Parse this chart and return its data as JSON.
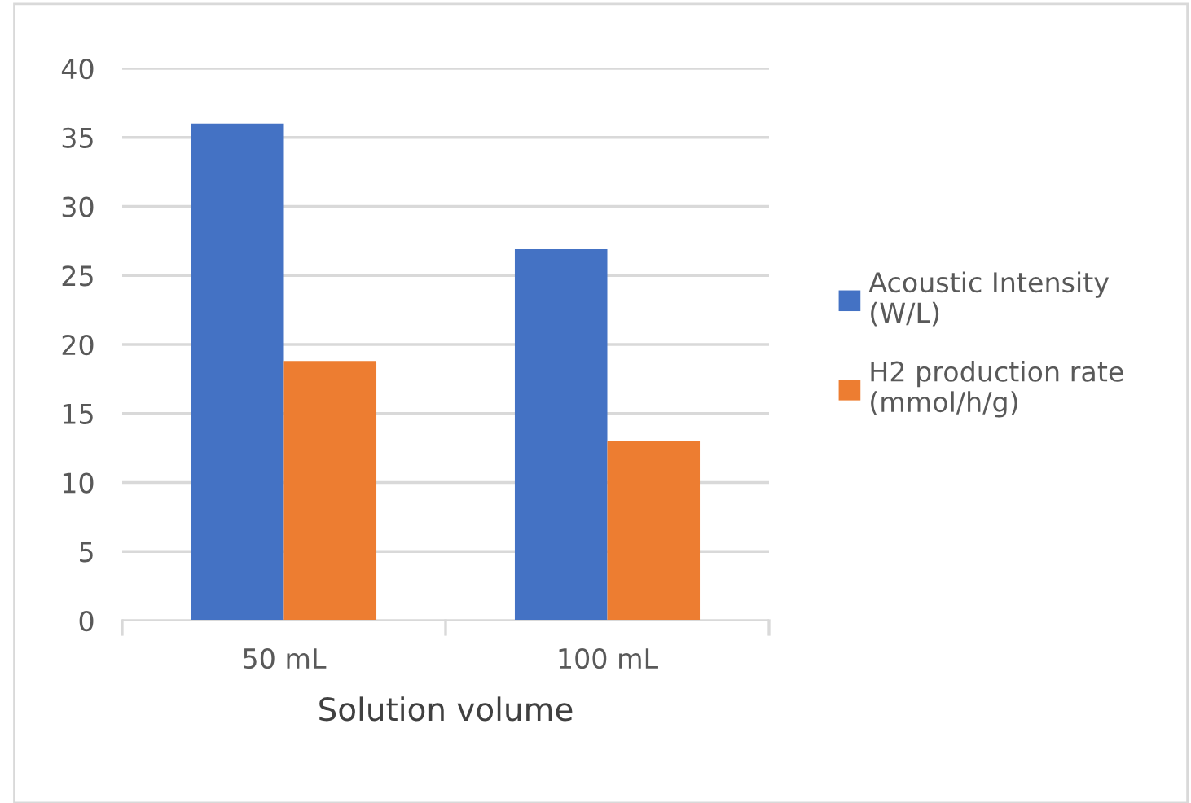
{
  "chart_data": {
    "type": "bar",
    "xlabel": "Solution volume",
    "categories": [
      "50 mL",
      "100 mL"
    ],
    "series": [
      {
        "name": "Acoustic Intensity\n(W/L)",
        "color": "#4472c4",
        "values": [
          36,
          26.9
        ]
      },
      {
        "name": "H2 production rate\n(mmol/h/g)",
        "color": "#ed7d31",
        "values": [
          18.8,
          13
        ]
      }
    ],
    "ylim": [
      0,
      40
    ],
    "yticks": [
      0,
      5,
      10,
      15,
      20,
      25,
      30,
      35,
      40
    ],
    "grid": "y",
    "legend": "right"
  }
}
